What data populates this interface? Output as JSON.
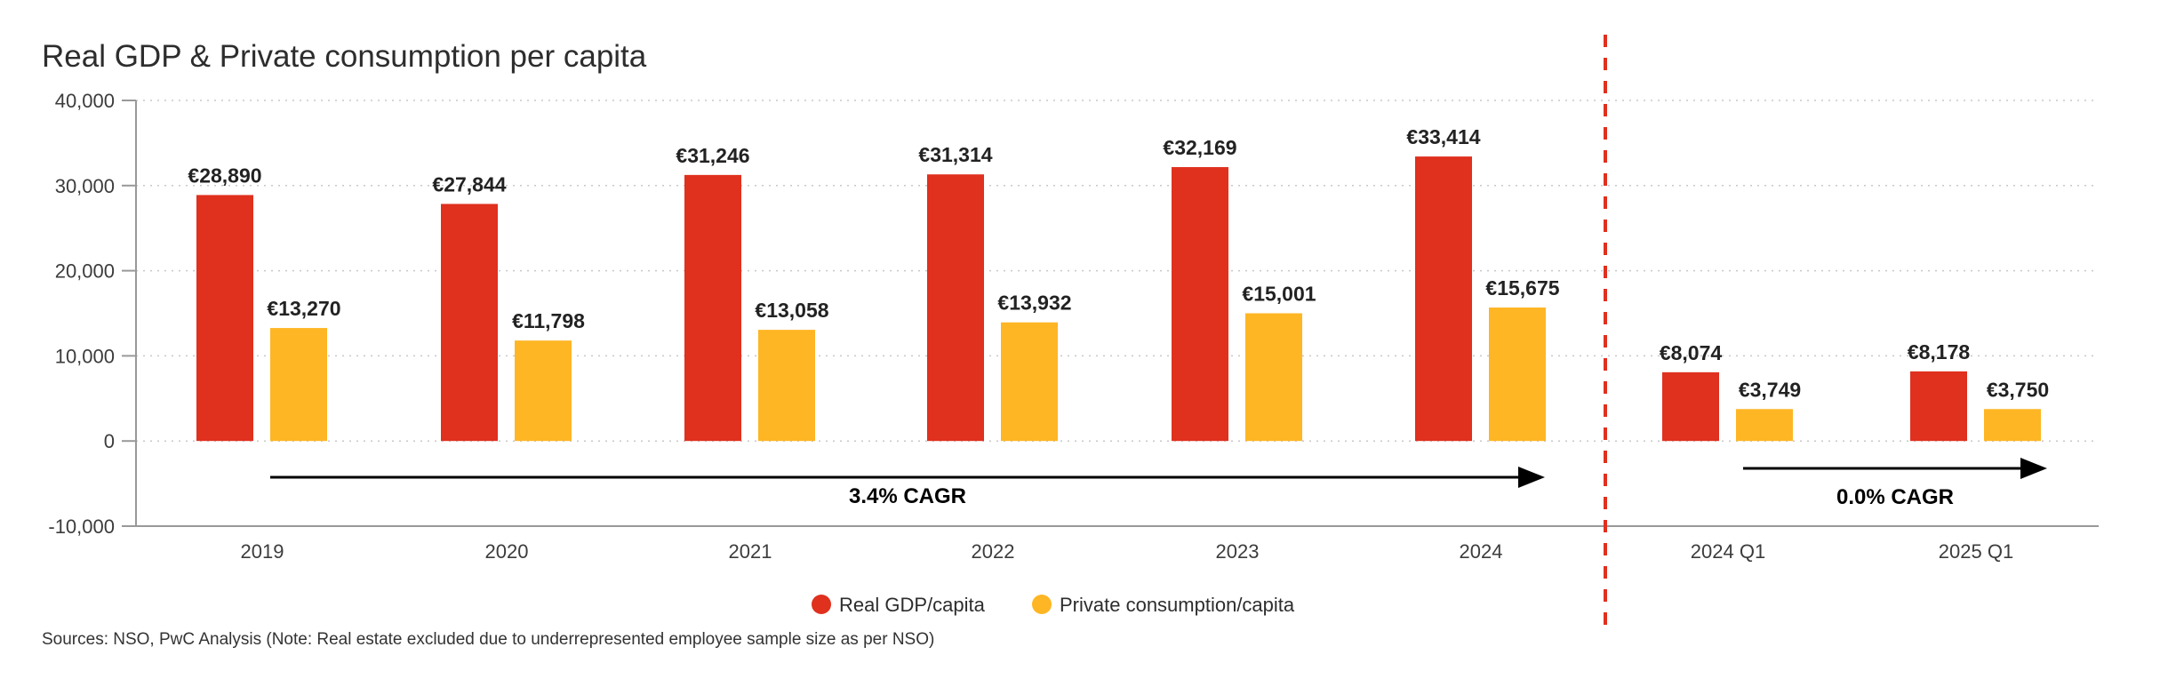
{
  "chart_data": {
    "type": "bar",
    "title": "Real GDP & Private consumption per capita",
    "categories": [
      "2019",
      "2020",
      "2021",
      "2022",
      "2023",
      "2024",
      "2024 Q1",
      "2025 Q1"
    ],
    "series": [
      {
        "name": "Real GDP/capita",
        "color": "#E0301E",
        "values": [
          28890,
          27844,
          31246,
          31314,
          32169,
          33414,
          8074,
          8178
        ],
        "labels": [
          "€28,890",
          "€27,844",
          "€31,246",
          "€31,314",
          "€32,169",
          "€33,414",
          "€8,074",
          "€8,178"
        ]
      },
      {
        "name": "Private consumption/capita",
        "color": "#FFB624",
        "values": [
          13270,
          11798,
          13058,
          13932,
          15001,
          15675,
          3749,
          3750
        ],
        "labels": [
          "€13,270",
          "€11,798",
          "€13,058",
          "€13,932",
          "€15,001",
          "€15,675",
          "€3,749",
          "€3,750"
        ]
      }
    ],
    "ylim": [
      -10000,
      40000
    ],
    "yticks": [
      40000,
      30000,
      20000,
      10000,
      0,
      -10000
    ],
    "ytick_labels": [
      "40,000",
      "30,000",
      "20,000",
      "10,000",
      "0",
      "-10,000"
    ],
    "xlabel": "",
    "ylabel": "",
    "grid": true,
    "legend_position": "bottom-center",
    "annotations": [
      {
        "text": "3.4% CAGR",
        "from": "2019",
        "to": "2024"
      },
      {
        "text": "0.0% CAGR",
        "from": "2024 Q1",
        "to": "2025 Q1"
      }
    ],
    "divider_between": [
      "2024",
      "2024 Q1"
    ],
    "divider_color": "#E0301E"
  },
  "source": "Sources: NSO, PwC Analysis (Note: Real estate excluded due to underrepresented employee sample size as per NSO)"
}
